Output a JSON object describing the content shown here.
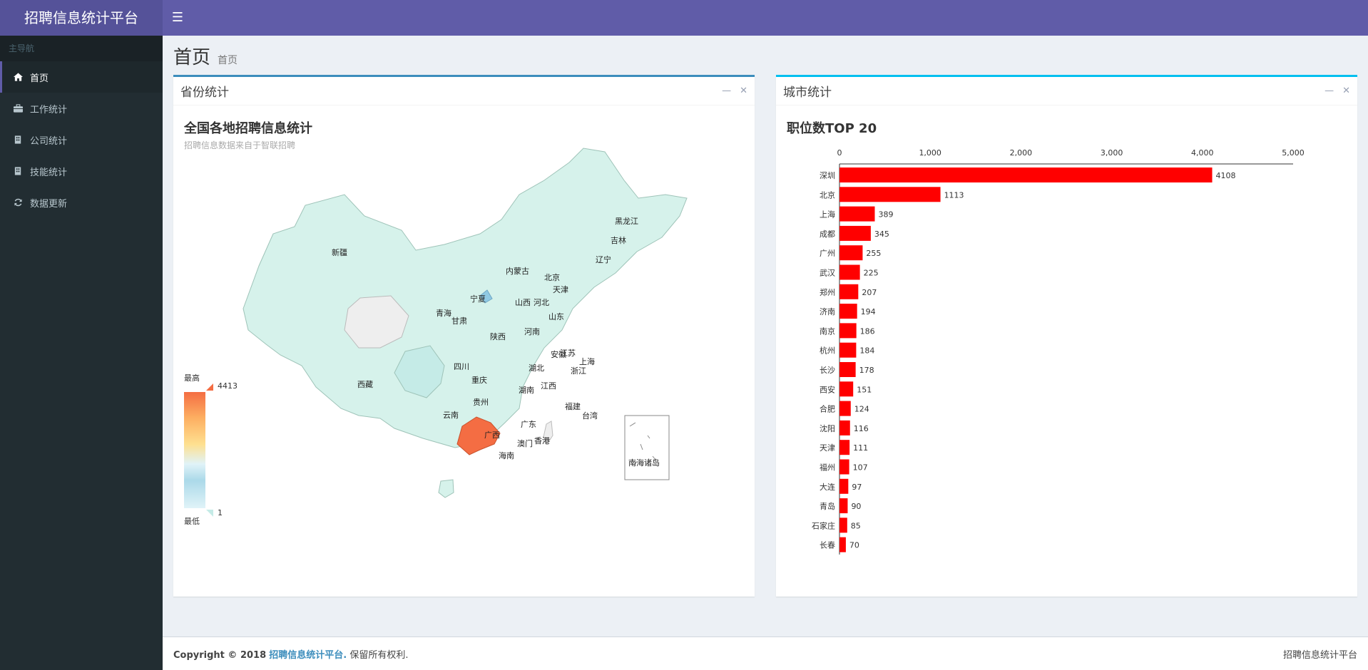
{
  "app": {
    "title": "招聘信息统计平台"
  },
  "sidebar": {
    "header": "主导航",
    "items": [
      {
        "label": "首页",
        "icon": "home-icon"
      },
      {
        "label": "工作统计",
        "icon": "briefcase-icon"
      },
      {
        "label": "公司统计",
        "icon": "building-icon"
      },
      {
        "label": "技能统计",
        "icon": "building-icon"
      },
      {
        "label": "数据更新",
        "icon": "refresh-icon"
      }
    ]
  },
  "page": {
    "title": "首页",
    "breadcrumb": "首页"
  },
  "province_box": {
    "title": "省份统计",
    "chart_title": "全国各地招聘信息统计",
    "chart_subtitle": "招聘信息数据来自于智联招聘",
    "legend_high": "最高",
    "legend_low": "最低",
    "legend_max": "4413",
    "legend_min": "1",
    "inset_label": "南海诸岛",
    "regions": [
      "新疆",
      "西藏",
      "青海",
      "甘肃",
      "宁夏",
      "内蒙古",
      "黑龙江",
      "吉林",
      "辽宁",
      "北京",
      "天津",
      "河北",
      "山西",
      "山东",
      "河南",
      "陕西",
      "四川",
      "重庆",
      "湖北",
      "安徽",
      "江苏",
      "上海",
      "浙江",
      "湖南",
      "江西",
      "贵州",
      "云南",
      "广西",
      "广东",
      "福建",
      "台湾",
      "香港",
      "澳门",
      "海南"
    ]
  },
  "city_box": {
    "title": "城市统计"
  },
  "chart_data": {
    "type": "bar",
    "title": "职位数TOP 20",
    "orientation": "horizontal",
    "categories": [
      "深圳",
      "北京",
      "上海",
      "成都",
      "广州",
      "武汉",
      "郑州",
      "济南",
      "南京",
      "杭州",
      "长沙",
      "西安",
      "合肥",
      "沈阳",
      "天津",
      "福州",
      "大连",
      "青岛",
      "石家庄",
      "长春"
    ],
    "values": [
      4108,
      1113,
      389,
      345,
      255,
      225,
      207,
      194,
      186,
      184,
      178,
      151,
      124,
      116,
      111,
      107,
      97,
      90,
      85,
      70
    ],
    "xlim": [
      0,
      5000
    ],
    "x_ticks": [
      "0",
      "1,000",
      "2,000",
      "3,000",
      "4,000",
      "5,000"
    ],
    "bar_color": "#ff0000"
  },
  "footer": {
    "copyright_prefix": "Copyright © 2018",
    "brand": "招聘信息统计平台.",
    "suffix": "保留所有权利.",
    "right_text": "招聘信息统计平台"
  }
}
